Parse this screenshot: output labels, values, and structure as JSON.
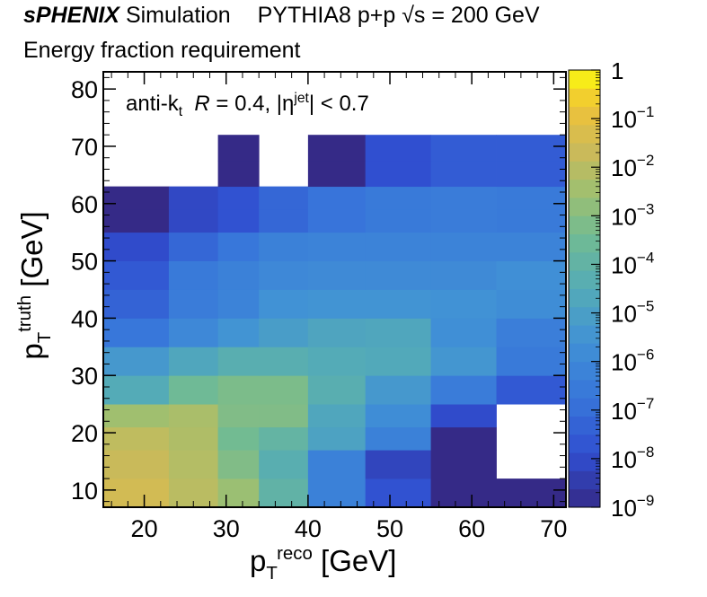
{
  "header": {
    "brand": "sPHENIX",
    "brand_suffix": "Simulation",
    "collision": "PYTHIA8 p+p",
    "sqrt": "√s",
    "energy": "= 200 GeV",
    "subtitle": "Energy fraction requirement"
  },
  "annotation": {
    "prefix": "anti-k",
    "prefix_sub": "t",
    "radius_var": "R",
    "radius_value": "= 0.4,",
    "eta_left": "|η",
    "eta_sup": "jet",
    "eta_right": "| < 0.7"
  },
  "axes": {
    "x_main": "p",
    "x_sub": "T",
    "x_sup": "reco",
    "x_unit": "[GeV]",
    "y_main": "p",
    "y_sub": "T",
    "y_sup": "truth",
    "y_unit": "[GeV]"
  },
  "chart_data": {
    "type": "heatmap",
    "x_edges": [
      15,
      23,
      29,
      34,
      40,
      47,
      55,
      63,
      71.5
    ],
    "y_edges": [
      7,
      12,
      17,
      21,
      25,
      30,
      35,
      40,
      45,
      50,
      55,
      59,
      63,
      67.5,
      72
    ],
    "xlim": [
      15,
      71.5
    ],
    "ylim": [
      7,
      83
    ],
    "x_ticks": [
      20,
      30,
      40,
      50,
      60,
      70
    ],
    "y_ticks": [
      10,
      20,
      30,
      40,
      50,
      60,
      70,
      80
    ],
    "z_scale": "log",
    "zlim": [
      1e-09,
      1
    ],
    "colorbar_ticks": [
      {
        "value": 1,
        "label": "1"
      },
      {
        "value": 0.1,
        "base": "10",
        "exp": "−1"
      },
      {
        "value": 0.01,
        "base": "10",
        "exp": "−2"
      },
      {
        "value": 0.001,
        "base": "10",
        "exp": "−3"
      },
      {
        "value": 0.0001,
        "base": "10",
        "exp": "−4"
      },
      {
        "value": 1e-05,
        "base": "10",
        "exp": "−5"
      },
      {
        "value": 1e-06,
        "base": "10",
        "exp": "−6"
      },
      {
        "value": 1e-07,
        "base": "10",
        "exp": "−7"
      },
      {
        "value": 1e-08,
        "base": "10",
        "exp": "−8"
      },
      {
        "value": 1e-09,
        "base": "10",
        "exp": "−9"
      }
    ],
    "log10_z_rows_bottom_to_top": [
      [
        -1.5,
        -2.0,
        -2.6,
        -4.0,
        -6.3,
        -7.8,
        -9.0,
        -9.0
      ],
      [
        -1.7,
        -2.1,
        -3.1,
        -4.3,
        -6.3,
        -8.2,
        -9.0,
        null
      ],
      [
        -1.9,
        -2.2,
        -3.4,
        -3.9,
        -4.9,
        -6.3,
        -9.0,
        null
      ],
      [
        -2.5,
        -2.3,
        -3.1,
        -3.1,
        -4.7,
        -5.8,
        -8.0,
        null
      ],
      [
        -4.5,
        -3.5,
        -3.2,
        -3.2,
        -4.3,
        -5.3,
        -6.5,
        -7.6
      ],
      [
        -5.3,
        -4.7,
        -4.3,
        -4.3,
        -4.5,
        -4.6,
        -5.4,
        -6.6
      ],
      [
        -6.7,
        -6.0,
        -5.5,
        -5.1,
        -4.8,
        -4.7,
        -5.7,
        -6.4
      ],
      [
        -7.3,
        -6.5,
        -6.2,
        -5.6,
        -5.5,
        -5.5,
        -5.6,
        -5.8
      ],
      [
        -7.6,
        -6.6,
        -6.3,
        -6.0,
        -5.9,
        -5.9,
        -5.9,
        -5.7
      ],
      [
        -8.0,
        -7.2,
        -6.7,
        -6.3,
        -6.2,
        -6.2,
        -6.2,
        -6.2
      ],
      [
        -9.0,
        -8.1,
        -7.8,
        -7.2,
        -6.8,
        -6.6,
        -6.5,
        -6.6
      ],
      [
        -9.0,
        -8.1,
        -7.8,
        -7.2,
        -6.8,
        -6.6,
        -6.5,
        -6.6
      ],
      [
        null,
        null,
        -9.0,
        null,
        -9.0,
        -7.9,
        -7.5,
        -7.5
      ],
      [
        null,
        null,
        -9.0,
        null,
        -9.0,
        -7.9,
        -7.5,
        -7.5
      ]
    ]
  }
}
